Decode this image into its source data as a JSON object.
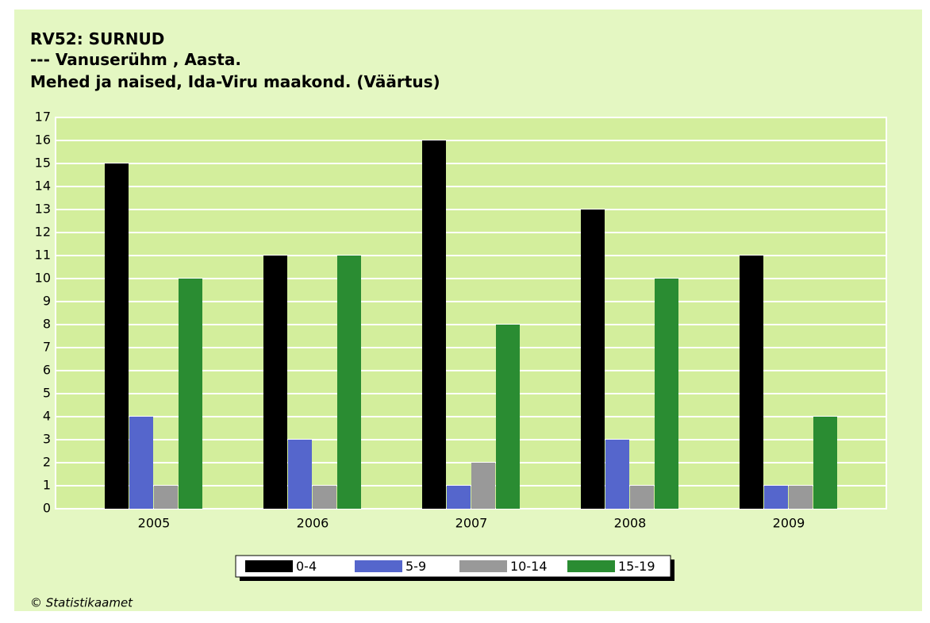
{
  "chart_data": {
    "type": "bar",
    "title": [
      "RV52: SURNUD",
      "--- Vanuserühm , Aasta.",
      "Mehed ja naised, Ida-Viru maakond. (Väärtus)"
    ],
    "categories": [
      "2005",
      "2006",
      "2007",
      "2008",
      "2009"
    ],
    "series": [
      {
        "name": "0-4",
        "color": "#000000",
        "values": [
          15,
          11,
          16,
          13,
          11
        ]
      },
      {
        "name": "5-9",
        "color": "#5566cc",
        "values": [
          4,
          3,
          1,
          3,
          1
        ]
      },
      {
        "name": "10-14",
        "color": "#999999",
        "values": [
          1,
          1,
          2,
          1,
          1
        ]
      },
      {
        "name": "15-19",
        "color": "#2a8c32",
        "values": [
          10,
          11,
          8,
          10,
          4
        ]
      }
    ],
    "ylim": [
      0,
      17
    ],
    "yticks": [
      0,
      1,
      2,
      3,
      4,
      5,
      6,
      7,
      8,
      9,
      10,
      11,
      12,
      13,
      14,
      15,
      16,
      17
    ],
    "grid": true,
    "legend": "bottom",
    "footer": "© Statistikaamet"
  }
}
